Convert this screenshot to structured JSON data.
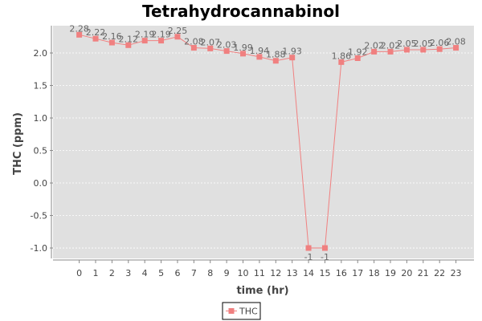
{
  "chart_data": {
    "type": "line",
    "title": "Tetrahydrocannabinol",
    "xlabel": "time (hr)",
    "ylabel": "THC (ppm)",
    "x": [
      0,
      1,
      2,
      3,
      4,
      5,
      6,
      7,
      8,
      9,
      10,
      11,
      12,
      13,
      14,
      15,
      16,
      17,
      18,
      19,
      20,
      21,
      22,
      23
    ],
    "series": [
      {
        "name": "THC",
        "color": "#f08080",
        "values": [
          2.28,
          2.22,
          2.16,
          2.12,
          2.19,
          2.19,
          2.25,
          2.08,
          2.07,
          2.03,
          1.99,
          1.94,
          1.88,
          1.93,
          -1,
          -1,
          1.86,
          1.92,
          2.02,
          2.02,
          2.05,
          2.05,
          2.06,
          2.08
        ],
        "labels": [
          "2.28",
          "2.22",
          "2.16",
          "2.12",
          "2.19",
          "2.19",
          "2.25",
          "2.08",
          "2.07",
          "2.03",
          "1.99",
          "1.94",
          "1.88",
          "1.93",
          "-1",
          "-1",
          "1.86",
          "1.92",
          "2.02",
          "2.02",
          "2.05",
          "2.05",
          "2.06",
          "2.08"
        ]
      }
    ],
    "yticks": [
      -1.0,
      -0.5,
      0.0,
      0.5,
      1.0,
      1.5,
      2.0
    ],
    "ytick_labels": [
      "-1.0",
      "-0.5",
      "0.0",
      "0.5",
      "1.0",
      "1.5",
      "2.0"
    ],
    "xtick_labels": [
      "0",
      "1",
      "2",
      "3",
      "4",
      "5",
      "6",
      "7",
      "8",
      "9",
      "10",
      "11",
      "12",
      "13",
      "14",
      "15",
      "16",
      "17",
      "18",
      "19",
      "20",
      "21",
      "22",
      "23"
    ],
    "ylim": [
      -1.16,
      2.42
    ],
    "xlim": [
      -1.6,
      24.1
    ],
    "grid": true,
    "legend": "bottom-center",
    "plot_background": "#e0e0e0"
  }
}
